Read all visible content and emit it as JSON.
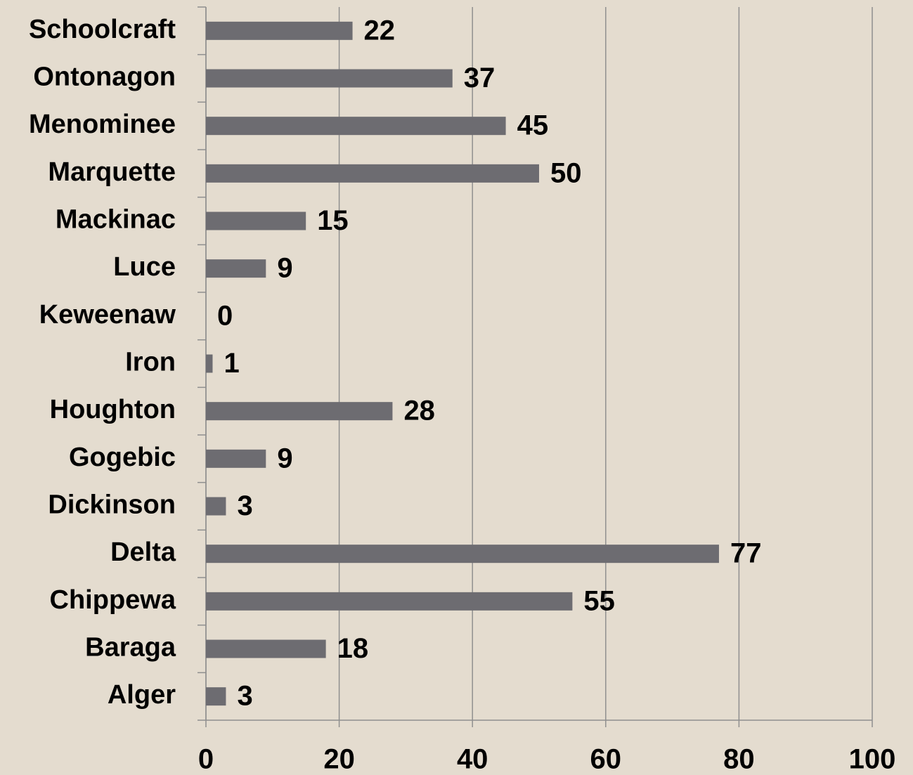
{
  "chart_data": {
    "type": "bar",
    "orientation": "horizontal",
    "categories": [
      "Schoolcraft",
      "Ontonagon",
      "Menominee",
      "Marquette",
      "Mackinac",
      "Luce",
      "Keweenaw",
      "Iron",
      "Houghton",
      "Gogebic",
      "Dickinson",
      "Delta",
      "Chippewa",
      "Baraga",
      "Alger"
    ],
    "values": [
      22,
      37,
      45,
      50,
      15,
      9,
      0,
      1,
      28,
      9,
      3,
      77,
      55,
      18,
      3
    ],
    "color": "#6d6c71",
    "xlim": [
      0,
      100
    ],
    "xticks": [
      0,
      20,
      40,
      60,
      80,
      100
    ],
    "grid": true
  }
}
